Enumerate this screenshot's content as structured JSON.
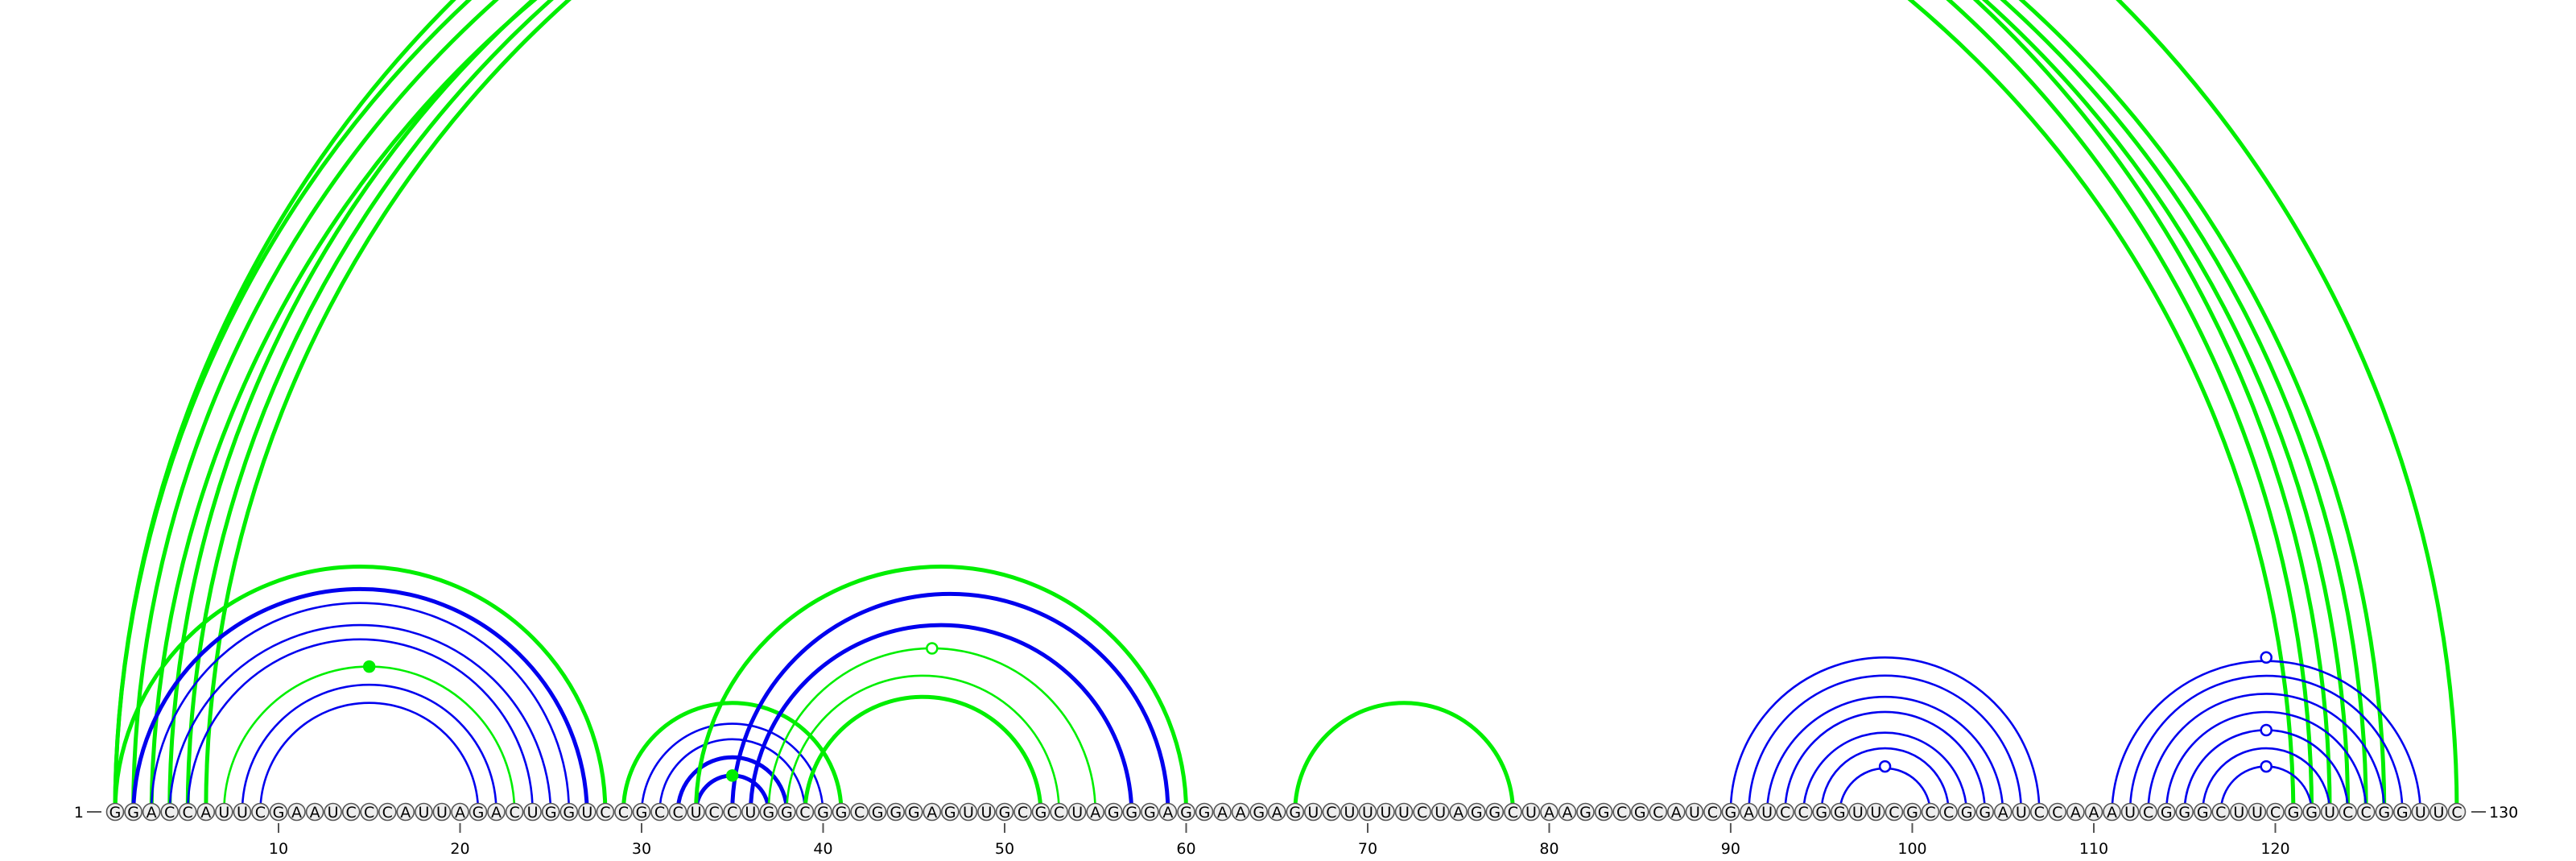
{
  "diagram": {
    "type": "rna-arc-diagram",
    "sequence": "GGACCAUUCGAAUCCCAUUAGACUGGUCCGCCUCCUGGCGGCGGGAGUUGCGCUAGGGAGGAAGAGUCUUUUCUAGGCUAAGGCGCAUCGAUCCGGUUCGCCGGAUCCAAAUCGGGCUUCGGUCCGGUUC",
    "start_label": "1",
    "end_label": "130",
    "ticks": [
      "10",
      "20",
      "30",
      "40",
      "50",
      "60",
      "70",
      "80",
      "90",
      "100",
      "110",
      "120"
    ],
    "colors": {
      "blue": "#0000ee",
      "green": "#00ee00",
      "base_fill": "#eeeeee",
      "base_stroke": "#555555"
    },
    "arcs": [
      {
        "i": 1,
        "j": 123,
        "color": "green",
        "weight": 2
      },
      {
        "i": 2,
        "j": 122,
        "color": "green",
        "weight": 2
      },
      {
        "i": 3,
        "j": 121,
        "color": "green",
        "weight": 2
      },
      {
        "i": 4,
        "j": 124,
        "color": "green",
        "weight": 2
      },
      {
        "i": 5,
        "j": 125,
        "color": "green",
        "weight": 2
      },
      {
        "i": 6,
        "j": 126,
        "color": "green",
        "weight": 2
      },
      {
        "i": 1,
        "j": 130,
        "color": "green",
        "weight": 2,
        "marker": "open"
      },
      {
        "i": 1,
        "j": 28,
        "color": "green",
        "weight": 2
      },
      {
        "i": 2,
        "j": 27,
        "color": "blue",
        "weight": 2
      },
      {
        "i": 3,
        "j": 26,
        "color": "blue",
        "weight": 1
      },
      {
        "i": 4,
        "j": 25,
        "color": "blue",
        "weight": 1
      },
      {
        "i": 5,
        "j": 24,
        "color": "blue",
        "weight": 1
      },
      {
        "i": 7,
        "j": 23,
        "color": "green",
        "weight": 1,
        "marker": "filled"
      },
      {
        "i": 8,
        "j": 22,
        "color": "blue",
        "weight": 1
      },
      {
        "i": 9,
        "j": 21,
        "color": "blue",
        "weight": 1
      },
      {
        "i": 29,
        "j": 41,
        "color": "green",
        "weight": 2
      },
      {
        "i": 30,
        "j": 40,
        "color": "blue",
        "weight": 1
      },
      {
        "i": 31,
        "j": 39,
        "color": "blue",
        "weight": 1
      },
      {
        "i": 32,
        "j": 38,
        "color": "blue",
        "weight": 2
      },
      {
        "i": 33,
        "j": 37,
        "color": "blue",
        "weight": 2,
        "marker": "filled-green"
      },
      {
        "i": 33,
        "j": 60,
        "color": "green",
        "weight": 2
      },
      {
        "i": 35,
        "j": 59,
        "color": "blue",
        "weight": 2
      },
      {
        "i": 36,
        "j": 57,
        "color": "blue",
        "weight": 2
      },
      {
        "i": 37,
        "j": 55,
        "color": "green",
        "weight": 1,
        "marker": "open"
      },
      {
        "i": 38,
        "j": 53,
        "color": "green",
        "weight": 1
      },
      {
        "i": 39,
        "j": 52,
        "color": "green",
        "weight": 2
      },
      {
        "i": 66,
        "j": 78,
        "color": "green",
        "weight": 2
      },
      {
        "i": 90,
        "j": 107,
        "color": "blue",
        "weight": 1
      },
      {
        "i": 91,
        "j": 106,
        "color": "blue",
        "weight": 1
      },
      {
        "i": 92,
        "j": 105,
        "color": "blue",
        "weight": 1
      },
      {
        "i": 93,
        "j": 104,
        "color": "blue",
        "weight": 1
      },
      {
        "i": 94,
        "j": 103,
        "color": "blue",
        "weight": 1
      },
      {
        "i": 95,
        "j": 102,
        "color": "blue",
        "weight": 1
      },
      {
        "i": 96,
        "j": 101,
        "color": "blue",
        "weight": 1,
        "marker": "open"
      },
      {
        "i": 111,
        "j": 128,
        "color": "blue",
        "weight": 1,
        "marker": "open"
      },
      {
        "i": 112,
        "j": 127,
        "color": "blue",
        "weight": 1
      },
      {
        "i": 113,
        "j": 126,
        "color": "blue",
        "weight": 1
      },
      {
        "i": 114,
        "j": 125,
        "color": "blue",
        "weight": 1
      },
      {
        "i": 115,
        "j": 124,
        "color": "blue",
        "weight": 1,
        "marker": "open"
      },
      {
        "i": 116,
        "j": 123,
        "color": "blue",
        "weight": 1
      },
      {
        "i": 117,
        "j": 122,
        "color": "blue",
        "weight": 1,
        "marker": "open"
      }
    ]
  }
}
